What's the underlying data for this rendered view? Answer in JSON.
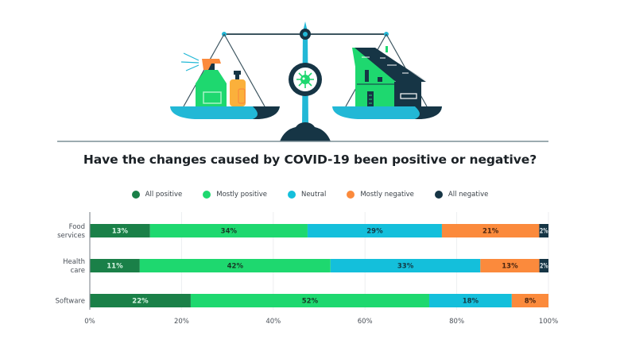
{
  "chart_data": {
    "type": "bar",
    "orientation": "horizontal",
    "stacked": true,
    "title": "Have the changes caused by COVID-19 been positive or negative?",
    "xlabel": "",
    "ylabel": "",
    "xlim": [
      0,
      100
    ],
    "x_ticks": [
      "0%",
      "20%",
      "40%",
      "60%",
      "80%",
      "100%"
    ],
    "grid": true,
    "legend_position": "top",
    "categories": [
      [
        "Food",
        "services"
      ],
      [
        "Health",
        "care"
      ],
      [
        "Software"
      ]
    ],
    "series": [
      {
        "name": "All positive",
        "color": "#1a8048",
        "label_color": "#d6f5e2",
        "values": [
          13,
          11,
          22
        ]
      },
      {
        "name": "Mostly positive",
        "color": "#1ed86f",
        "label_color": "#173a26",
        "values": [
          34,
          42,
          52
        ]
      },
      {
        "name": "Neutral",
        "color": "#14bfdb",
        "label_color": "#133a45",
        "values": [
          29,
          33,
          18
        ]
      },
      {
        "name": "Mostly negative",
        "color": "#fb8a3c",
        "label_color": "#4a2510",
        "values": [
          21,
          13,
          8
        ]
      },
      {
        "name": "All negative",
        "color": "#163545",
        "label_color": "#dfe8ec",
        "values": [
          2,
          2,
          0
        ]
      }
    ],
    "value_suffix": "%"
  },
  "illustration": {
    "description_icons": [
      "balance-scale",
      "spray-bottle",
      "soap-bottle",
      "virus",
      "house"
    ]
  }
}
